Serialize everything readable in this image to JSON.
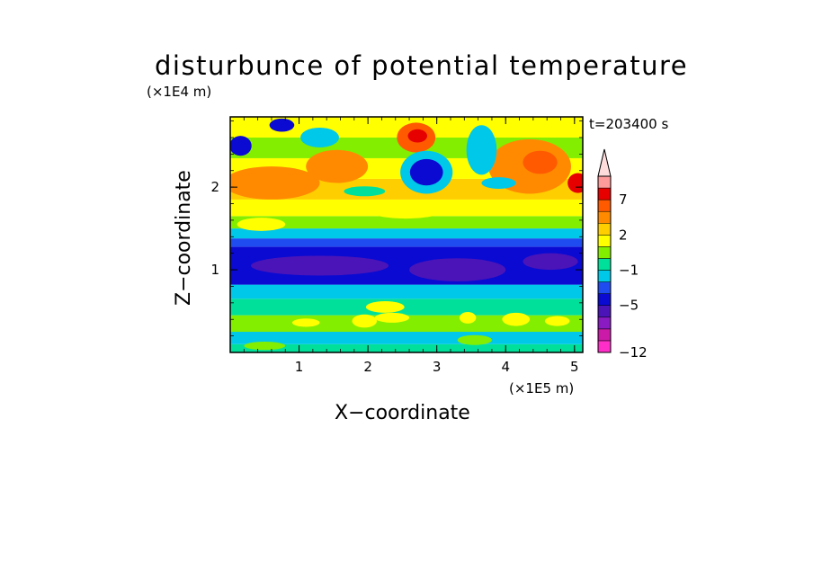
{
  "chart_data": {
    "type": "heatmap",
    "title": "disturbunce of potential temperature",
    "xlabel": "X−coordinate",
    "ylabel": "Z−coordinate",
    "x_unit": "(×1E5 m)",
    "z_unit": "(×1E4 m)",
    "time_label": "t=203400 s",
    "xlim": [
      0,
      5.12
    ],
    "ylim": [
      0,
      2.85
    ],
    "x_ticks": [
      {
        "v": 1,
        "label": "1"
      },
      {
        "v": 2,
        "label": "2"
      },
      {
        "v": 3,
        "label": "3"
      },
      {
        "v": 4,
        "label": "4"
      },
      {
        "v": 5,
        "label": "5"
      }
    ],
    "y_ticks": [
      {
        "v": 1,
        "label": "1"
      },
      {
        "v": 2,
        "label": "2"
      }
    ],
    "colorbar": {
      "levels": [
        -12,
        -11,
        -9,
        -7,
        -5,
        -4,
        -3,
        -1,
        0,
        1,
        2,
        3,
        5,
        7,
        9,
        11
      ],
      "labels": [
        {
          "v": -12,
          "label": "−12"
        },
        {
          "v": -5,
          "label": "−5"
        },
        {
          "v": -1,
          "label": "−1"
        },
        {
          "v": 2,
          "label": "2"
        },
        {
          "v": 7,
          "label": "7"
        }
      ],
      "colors": [
        "#ff2ec8",
        "#cc1aa8",
        "#8a1ac2",
        "#4a14b8",
        "#0a0ad2",
        "#1e4cf0",
        "#00c8e8",
        "#00e09a",
        "#84ee00",
        "#ffff00",
        "#ffce00",
        "#ff8a00",
        "#ff5a00",
        "#e60000",
        "#ff9a9a"
      ],
      "extend_color": "#ffdcdc"
    },
    "bands": [
      {
        "z": [
          0.0,
          0.1
        ],
        "value": -0.5
      },
      {
        "z": [
          0.1,
          0.25
        ],
        "value": -2
      },
      {
        "z": [
          0.25,
          0.45
        ],
        "value": 0.3
      },
      {
        "z": [
          0.45,
          0.65
        ],
        "value": -0.5
      },
      {
        "z": [
          0.65,
          0.82
        ],
        "value": -2
      },
      {
        "z": [
          0.82,
          1.28
        ],
        "value": -4.5
      },
      {
        "z": [
          1.28,
          1.38
        ],
        "value": -3.5
      },
      {
        "z": [
          1.38,
          1.5
        ],
        "value": -2
      },
      {
        "z": [
          1.5,
          1.65
        ],
        "value": 0.3
      },
      {
        "z": [
          1.65,
          1.85
        ],
        "value": 1.5
      },
      {
        "z": [
          1.85,
          2.1
        ],
        "value": 2.5
      },
      {
        "z": [
          2.1,
          2.35
        ],
        "value": 1.5
      },
      {
        "z": [
          2.35,
          2.6
        ],
        "value": 0.3
      },
      {
        "z": [
          2.6,
          2.85
        ],
        "value": 1.5
      }
    ],
    "features": [
      {
        "x": 2.7,
        "z": 2.6,
        "rx": 0.28,
        "rz": 0.18,
        "value": 6
      },
      {
        "x": 2.72,
        "z": 2.62,
        "rx": 0.14,
        "rz": 0.08,
        "value": 8
      },
      {
        "x": 2.85,
        "z": 2.18,
        "rx": 0.38,
        "rz": 0.26,
        "value": -2.5
      },
      {
        "x": 2.85,
        "z": 2.18,
        "rx": 0.24,
        "rz": 0.16,
        "value": -4.5
      },
      {
        "x": 4.35,
        "z": 2.25,
        "rx": 0.6,
        "rz": 0.33,
        "value": 4
      },
      {
        "x": 4.5,
        "z": 2.3,
        "rx": 0.25,
        "rz": 0.14,
        "value": 5.5
      },
      {
        "x": 5.05,
        "z": 2.05,
        "rx": 0.15,
        "rz": 0.12,
        "value": 7
      },
      {
        "x": 0.6,
        "z": 2.05,
        "rx": 0.7,
        "rz": 0.2,
        "value": 4
      },
      {
        "x": 1.55,
        "z": 2.25,
        "rx": 0.45,
        "rz": 0.2,
        "value": 4
      },
      {
        "x": 3.65,
        "z": 2.45,
        "rx": 0.22,
        "rz": 0.3,
        "value": -2.5
      },
      {
        "x": 1.3,
        "z": 2.6,
        "rx": 0.28,
        "rz": 0.12,
        "value": -3
      },
      {
        "x": 0.15,
        "z": 2.5,
        "rx": 0.16,
        "rz": 0.12,
        "value": -4.5
      },
      {
        "x": 0.75,
        "z": 2.75,
        "rx": 0.18,
        "rz": 0.08,
        "value": -4.5
      },
      {
        "x": 0.45,
        "z": 1.55,
        "rx": 0.35,
        "rz": 0.08,
        "value": 1.5
      },
      {
        "x": 2.55,
        "z": 1.7,
        "rx": 0.5,
        "rz": 0.08,
        "value": 1.5
      },
      {
        "x": 4.0,
        "z": 1.75,
        "rx": 0.4,
        "rz": 0.09,
        "value": 1.5
      },
      {
        "x": 1.95,
        "z": 1.95,
        "rx": 0.3,
        "rz": 0.06,
        "value": -0.5
      },
      {
        "x": 3.9,
        "z": 2.05,
        "rx": 0.25,
        "rz": 0.07,
        "value": -2
      },
      {
        "x": 1.3,
        "z": 1.05,
        "rx": 1.0,
        "rz": 0.12,
        "value": -5.5
      },
      {
        "x": 3.3,
        "z": 1.0,
        "rx": 0.7,
        "rz": 0.14,
        "value": -5.5
      },
      {
        "x": 4.65,
        "z": 1.1,
        "rx": 0.4,
        "rz": 0.1,
        "value": -5.5
      },
      {
        "x": 1.95,
        "z": 0.38,
        "rx": 0.18,
        "rz": 0.08,
        "value": 1.5
      },
      {
        "x": 2.35,
        "z": 0.42,
        "rx": 0.25,
        "rz": 0.06,
        "value": 1.5
      },
      {
        "x": 1.1,
        "z": 0.36,
        "rx": 0.2,
        "rz": 0.05,
        "value": 1.5
      },
      {
        "x": 2.25,
        "z": 0.55,
        "rx": 0.28,
        "rz": 0.07,
        "value": 1.5
      },
      {
        "x": 3.45,
        "z": 0.42,
        "rx": 0.12,
        "rz": 0.07,
        "value": 1.5
      },
      {
        "x": 4.15,
        "z": 0.4,
        "rx": 0.2,
        "rz": 0.08,
        "value": 1.5
      },
      {
        "x": 4.75,
        "z": 0.38,
        "rx": 0.18,
        "rz": 0.06,
        "value": 1.5
      },
      {
        "x": 0.5,
        "z": 0.08,
        "rx": 0.3,
        "rz": 0.05,
        "value": 0.3
      },
      {
        "x": 3.55,
        "z": 0.15,
        "rx": 0.25,
        "rz": 0.06,
        "value": 0.3
      }
    ]
  }
}
